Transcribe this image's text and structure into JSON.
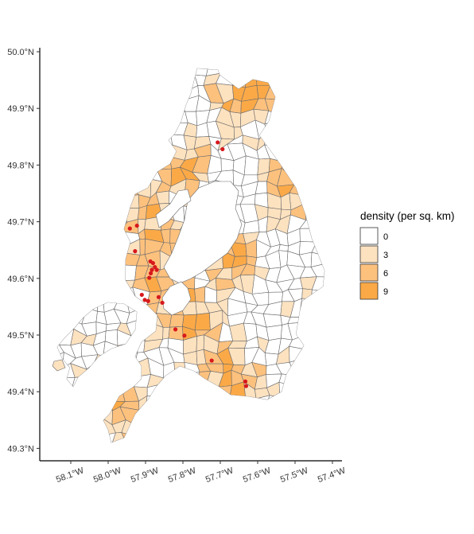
{
  "chart_data": {
    "type": "choropleth",
    "x_axis": {
      "ticks": [
        {
          "value": -58.1,
          "label": "58.1°W"
        },
        {
          "value": -58.0,
          "label": "58.0°W"
        },
        {
          "value": -57.9,
          "label": "57.9°W"
        },
        {
          "value": -57.8,
          "label": "57.8°W"
        },
        {
          "value": -57.7,
          "label": "57.7°W"
        },
        {
          "value": -57.6,
          "label": "57.6°W"
        },
        {
          "value": -57.5,
          "label": "57.5°W"
        },
        {
          "value": -57.4,
          "label": "57.4°W"
        }
      ]
    },
    "y_axis": {
      "ticks": [
        {
          "value": 50.0,
          "label": "50.0°N"
        },
        {
          "value": 49.9,
          "label": "49.9°N"
        },
        {
          "value": 49.8,
          "label": "49.8°N"
        },
        {
          "value": 49.7,
          "label": "49.7°N"
        },
        {
          "value": 49.6,
          "label": "49.6°N"
        },
        {
          "value": 49.5,
          "label": "49.5°N"
        },
        {
          "value": 49.4,
          "label": "49.4°N"
        },
        {
          "value": 49.3,
          "label": "49.3°N"
        }
      ]
    },
    "legend": {
      "title": "density (per sq. km)",
      "position": "right",
      "entries": [
        {
          "label": "0",
          "color": "#ffffff"
        },
        {
          "label": "3",
          "color": "#fde2c0"
        },
        {
          "label": "6",
          "color": "#fdc17e"
        },
        {
          "label": "9",
          "color": "#fba947"
        }
      ]
    },
    "points_color": "#d7191c",
    "points": [
      {
        "lon": -57.707,
        "lat": 49.84
      },
      {
        "lon": -57.694,
        "lat": 49.828
      },
      {
        "lon": -57.923,
        "lat": 49.693
      },
      {
        "lon": -57.942,
        "lat": 49.688
      },
      {
        "lon": -57.928,
        "lat": 49.648
      },
      {
        "lon": -57.887,
        "lat": 49.63
      },
      {
        "lon": -57.88,
        "lat": 49.627
      },
      {
        "lon": -57.875,
        "lat": 49.62
      },
      {
        "lon": -57.883,
        "lat": 49.615
      },
      {
        "lon": -57.87,
        "lat": 49.615
      },
      {
        "lon": -57.886,
        "lat": 49.609
      },
      {
        "lon": -57.89,
        "lat": 49.601
      },
      {
        "lon": -57.91,
        "lat": 49.571
      },
      {
        "lon": -57.902,
        "lat": 49.562
      },
      {
        "lon": -57.893,
        "lat": 49.56
      },
      {
        "lon": -57.865,
        "lat": 49.567
      },
      {
        "lon": -57.855,
        "lat": 49.557
      },
      {
        "lon": -57.82,
        "lat": 49.51
      },
      {
        "lon": -57.796,
        "lat": 49.499
      },
      {
        "lon": -57.723,
        "lat": 49.455
      },
      {
        "lon": -57.633,
        "lat": 49.418
      },
      {
        "lon": -57.631,
        "lat": 49.41
      }
    ]
  }
}
